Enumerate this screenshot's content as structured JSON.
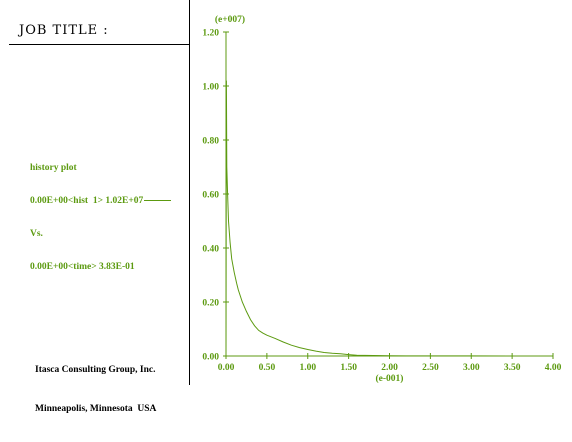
{
  "header": {
    "job_title": "JOB TITLE :"
  },
  "legend": {
    "lines": [
      "history plot",
      "0.00E+00<hist  1> 1.02E+07",
      "Vs.",
      "0.00E+00<time> 3.83E-01"
    ]
  },
  "footer": {
    "company": "Itasca Consulting Group, Inc.",
    "location": "Minneapolis, Minnesota  USA"
  },
  "colors": {
    "plot": "#5c9a10",
    "frame": "#000000"
  },
  "chart_data": {
    "type": "line",
    "title": "",
    "xlabel": "(e-001)",
    "ylabel": "(e+007)",
    "xlim": [
      0,
      4.0
    ],
    "ylim": [
      0,
      1.2
    ],
    "x_ticks": [
      "0.00",
      "0.50",
      "1.00",
      "1.50",
      "2.00",
      "2.50",
      "3.00",
      "3.50",
      "4.00"
    ],
    "y_ticks": [
      "0.00",
      "0.20",
      "0.40",
      "0.60",
      "0.80",
      "1.00",
      "1.20"
    ],
    "series": [
      {
        "x": [
          0.0,
          0.005,
          0.01,
          0.02,
          0.03,
          0.05,
          0.07,
          0.1,
          0.13,
          0.15,
          0.2,
          0.25,
          0.3,
          0.35,
          0.4,
          0.45,
          0.5,
          0.6,
          0.7,
          0.8,
          0.9,
          1.0,
          1.1,
          1.2,
          1.3,
          1.4,
          1.5,
          1.6,
          1.8,
          2.0,
          2.2,
          2.5,
          3.0,
          3.5,
          3.83
        ],
        "y": [
          0.0,
          1.02,
          0.7,
          0.6,
          0.5,
          0.42,
          0.36,
          0.31,
          0.27,
          0.245,
          0.2,
          0.165,
          0.135,
          0.112,
          0.095,
          0.085,
          0.077,
          0.065,
          0.052,
          0.04,
          0.031,
          0.024,
          0.018,
          0.013,
          0.01,
          0.008,
          0.005,
          0.003,
          0.002,
          0.001,
          0.0005,
          0.0003,
          0.0002,
          0.0001,
          0.0
        ]
      }
    ]
  }
}
